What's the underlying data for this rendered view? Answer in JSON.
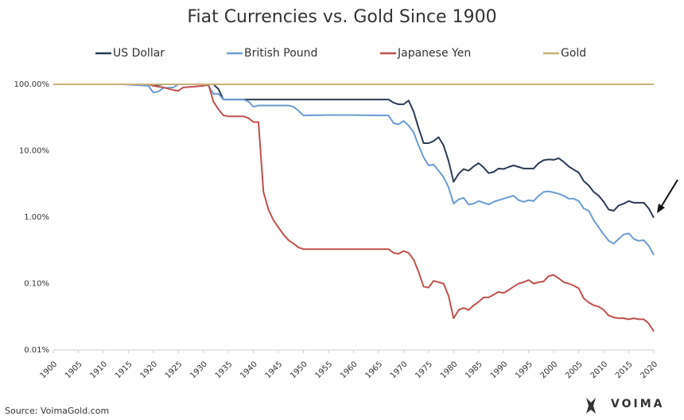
{
  "chart_data": {
    "type": "line",
    "title": "Fiat Currencies vs. Gold Since 1900",
    "source": "Source: VoimaGold.com",
    "brand": "VOIMA",
    "log_scale": true,
    "grid": false,
    "legend": "top",
    "xlim": [
      1900,
      2020
    ],
    "xticks": [
      1900,
      1905,
      1910,
      1915,
      1920,
      1925,
      1930,
      1935,
      1940,
      1945,
      1950,
      1955,
      1960,
      1965,
      1970,
      1975,
      1980,
      1985,
      1990,
      1995,
      2000,
      2005,
      2010,
      2015,
      2020
    ],
    "ylim": [
      0.01,
      100
    ],
    "yticks": [
      {
        "value": 100,
        "label": "100.00%"
      },
      {
        "value": 10,
        "label": "10.00%"
      },
      {
        "value": 1,
        "label": "1.00%"
      },
      {
        "value": 0.1,
        "label": "0.10%"
      },
      {
        "value": 0.01,
        "label": "0.01%"
      }
    ],
    "x": [
      1900,
      1910,
      1914,
      1919,
      1920,
      1921,
      1922,
      1924,
      1925,
      1926,
      1928,
      1930,
      1931,
      1932,
      1933,
      1934,
      1935,
      1938,
      1939,
      1940,
      1941,
      1942,
      1943,
      1944,
      1945,
      1946,
      1947,
      1948,
      1949,
      1950,
      1955,
      1960,
      1965,
      1967,
      1968,
      1969,
      1970,
      1971,
      1972,
      1973,
      1974,
      1975,
      1976,
      1977,
      1978,
      1979,
      1980,
      1981,
      1982,
      1983,
      1984,
      1985,
      1986,
      1987,
      1988,
      1989,
      1990,
      1991,
      1992,
      1993,
      1994,
      1995,
      1996,
      1997,
      1998,
      1999,
      2000,
      2001,
      2002,
      2003,
      2004,
      2005,
      2006,
      2007,
      2008,
      2009,
      2010,
      2011,
      2012,
      2013,
      2014,
      2015,
      2016,
      2017,
      2018,
      2019,
      2020
    ],
    "series": [
      {
        "name": "US Dollar",
        "color": "#2b3a55",
        "values": [
          100,
          100,
          100,
          100,
          96,
          98,
          100,
          100,
          100,
          100,
          100,
          100,
          100,
          100,
          85,
          59,
          59,
          59,
          59,
          59,
          59,
          59,
          59,
          59,
          59,
          59,
          59,
          59,
          59,
          59,
          59,
          59,
          59,
          59,
          53,
          50,
          50,
          57,
          39,
          22,
          13,
          13,
          14,
          16,
          12,
          7,
          3.4,
          4.5,
          5.3,
          5,
          5.8,
          6.5,
          5.6,
          4.6,
          4.8,
          5.4,
          5.3,
          5.7,
          6,
          5.7,
          5.4,
          5.4,
          5.4,
          6.5,
          7.2,
          7.4,
          7.3,
          7.7,
          6.8,
          5.8,
          5.2,
          4.7,
          3.5,
          3.0,
          2.4,
          2.1,
          1.7,
          1.3,
          1.25,
          1.5,
          1.6,
          1.75,
          1.65,
          1.65,
          1.65,
          1.35,
          0.98
        ]
      },
      {
        "name": "British Pound",
        "color": "#6b9bd2",
        "values": [
          100,
          100,
          100,
          95,
          75,
          78,
          88,
          90,
          100,
          100,
          100,
          100,
          95,
          72,
          72,
          59,
          59,
          59,
          55,
          46,
          48,
          48,
          48,
          48,
          48,
          48,
          48,
          46,
          40,
          34,
          34.5,
          34.5,
          34,
          34,
          26,
          25,
          28,
          24,
          19,
          12,
          8,
          6,
          6.2,
          5,
          4,
          2.8,
          1.6,
          1.85,
          1.95,
          1.55,
          1.6,
          1.75,
          1.65,
          1.55,
          1.7,
          1.8,
          1.9,
          2.0,
          2.1,
          1.8,
          1.7,
          1.8,
          1.75,
          2.1,
          2.4,
          2.45,
          2.35,
          2.25,
          2.1,
          1.9,
          1.9,
          1.75,
          1.35,
          1.25,
          0.9,
          0.7,
          0.55,
          0.44,
          0.4,
          0.47,
          0.55,
          0.57,
          0.47,
          0.44,
          0.45,
          0.37,
          0.27
        ]
      },
      {
        "name": "Japanese Yen",
        "color": "#c0504d",
        "values": [
          100,
          100,
          100,
          100,
          95,
          92,
          90,
          82,
          80,
          90,
          92,
          95,
          100,
          55,
          42,
          34,
          33,
          33,
          31,
          27,
          27,
          2.4,
          1.3,
          0.9,
          0.7,
          0.55,
          0.45,
          0.4,
          0.35,
          0.33,
          0.33,
          0.33,
          0.33,
          0.33,
          0.29,
          0.28,
          0.31,
          0.29,
          0.23,
          0.15,
          0.09,
          0.087,
          0.11,
          0.105,
          0.1,
          0.065,
          0.03,
          0.04,
          0.043,
          0.04,
          0.047,
          0.053,
          0.062,
          0.062,
          0.068,
          0.075,
          0.072,
          0.08,
          0.09,
          0.1,
          0.105,
          0.113,
          0.1,
          0.105,
          0.108,
          0.13,
          0.135,
          0.12,
          0.105,
          0.1,
          0.093,
          0.085,
          0.06,
          0.052,
          0.047,
          0.045,
          0.04,
          0.033,
          0.031,
          0.03,
          0.03,
          0.029,
          0.03,
          0.029,
          0.029,
          0.025,
          0.019
        ]
      },
      {
        "name": "Gold",
        "color": "#c8b07a",
        "values": [
          100,
          100,
          100,
          100,
          100,
          100,
          100,
          100,
          100,
          100,
          100,
          100,
          100,
          100,
          100,
          100,
          100,
          100,
          100,
          100,
          100,
          100,
          100,
          100,
          100,
          100,
          100,
          100,
          100,
          100,
          100,
          100,
          100,
          100,
          100,
          100,
          100,
          100,
          100,
          100,
          100,
          100,
          100,
          100,
          100,
          100,
          100,
          100,
          100,
          100,
          100,
          100,
          100,
          100,
          100,
          100,
          100,
          100,
          100,
          100,
          100,
          100,
          100,
          100,
          100,
          100,
          100,
          100,
          100,
          100,
          100,
          100,
          100,
          100,
          100,
          100,
          100,
          100,
          100,
          100,
          100,
          100,
          100,
          100,
          100,
          100,
          100
        ]
      }
    ]
  }
}
